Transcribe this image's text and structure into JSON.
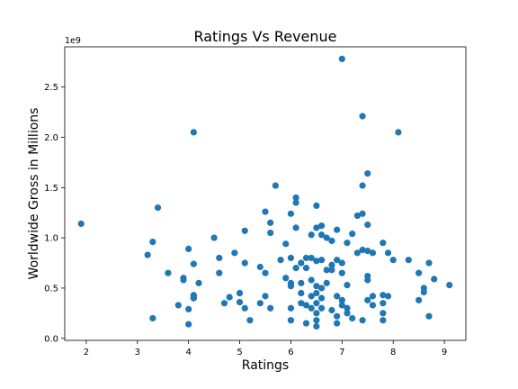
{
  "chart_data": {
    "type": "scatter",
    "title": "Ratings Vs Revenue",
    "xlabel": "Ratings",
    "ylabel": "Worldwide Gross in Millions",
    "y_offset_label": "1e9",
    "xlim": [
      1.58,
      9.42
    ],
    "ylim": [
      -0.02,
      2.9
    ],
    "xticks": [
      2,
      3,
      4,
      5,
      6,
      7,
      8,
      9
    ],
    "yticks": [
      0.0,
      0.5,
      1.0,
      1.5,
      2.0,
      2.5
    ],
    "ytick_labels": [
      "0.0",
      "0.5",
      "1.0",
      "1.5",
      "2.0",
      "2.5"
    ],
    "grid": false,
    "marker_color": "#1f77b4",
    "series": [
      {
        "x": [
          1.9,
          3.2,
          3.3,
          3.3,
          3.4,
          3.6,
          3.8,
          3.9,
          3.9,
          4.0,
          4.0,
          4.0,
          4.1,
          4.1,
          4.1,
          4.1,
          4.1,
          4.2,
          4.5,
          4.6,
          4.6,
          4.7,
          4.8,
          4.9,
          5.0,
          5.0,
          5.1,
          5.1,
          5.1,
          5.2,
          5.4,
          5.4,
          5.5,
          5.5,
          5.5,
          5.6,
          5.6,
          5.6,
          5.7,
          5.8,
          5.9,
          5.9,
          6.0,
          6.0,
          6.0,
          6.0,
          6.0,
          6.0,
          6.1,
          6.1,
          6.1,
          6.1,
          6.2,
          6.2,
          6.2,
          6.2,
          6.3,
          6.3,
          6.3,
          6.3,
          6.4,
          6.4,
          6.4,
          6.4,
          6.4,
          6.5,
          6.5,
          6.5,
          6.5,
          6.5,
          6.5,
          6.5,
          6.5,
          6.5,
          6.6,
          6.6,
          6.6,
          6.6,
          6.6,
          6.6,
          6.7,
          6.7,
          6.7,
          6.8,
          6.8,
          6.8,
          6.8,
          6.9,
          6.9,
          6.9,
          6.9,
          6.9,
          7.0,
          7.0,
          7.0,
          7.0,
          7.0,
          7.1,
          7.1,
          7.1,
          7.1,
          7.2,
          7.2,
          7.3,
          7.3,
          7.4,
          7.4,
          7.4,
          7.4,
          7.4,
          7.5,
          7.5,
          7.5,
          7.5,
          7.5,
          7.5,
          7.6,
          7.6,
          7.6,
          7.8,
          7.8,
          7.8,
          7.8,
          7.8,
          7.9,
          7.9,
          8.0,
          8.1,
          8.3,
          8.5,
          8.5,
          8.6,
          8.6,
          8.7,
          8.7,
          8.8,
          9.1
        ],
        "y": [
          1.14,
          0.83,
          0.96,
          0.2,
          1.3,
          0.65,
          0.33,
          0.6,
          0.58,
          0.89,
          0.14,
          0.29,
          2.05,
          0.74,
          0.43,
          0.41,
          0.4,
          0.55,
          1.0,
          0.8,
          0.65,
          0.35,
          0.41,
          0.85,
          0.45,
          0.36,
          1.07,
          0.75,
          0.3,
          0.18,
          0.71,
          0.35,
          1.26,
          0.65,
          0.42,
          1.15,
          1.05,
          0.3,
          1.52,
          0.78,
          0.94,
          0.6,
          1.24,
          0.8,
          0.55,
          0.52,
          0.3,
          0.18,
          1.4,
          1.35,
          1.1,
          0.7,
          0.75,
          0.45,
          0.35,
          0.55,
          0.8,
          0.7,
          0.33,
          0.15,
          0.8,
          0.58,
          1.03,
          0.42,
          0.3,
          1.32,
          1.1,
          0.77,
          0.52,
          0.45,
          0.35,
          0.25,
          0.18,
          0.12,
          1.12,
          1.03,
          0.78,
          0.5,
          0.4,
          0.3,
          1.0,
          0.68,
          0.55,
          0.97,
          0.73,
          0.68,
          0.28,
          1.08,
          0.78,
          0.42,
          0.22,
          0.15,
          2.78,
          0.75,
          0.65,
          0.38,
          0.33,
          0.95,
          0.53,
          0.3,
          0.25,
          1.04,
          0.2,
          1.22,
          0.85,
          2.21,
          1.52,
          1.24,
          0.88,
          0.18,
          1.64,
          1.13,
          0.87,
          0.62,
          0.58,
          0.38,
          0.85,
          0.42,
          0.33,
          0.95,
          0.43,
          0.35,
          0.25,
          0.18,
          0.85,
          0.42,
          0.78,
          2.05,
          0.78,
          0.65,
          0.38,
          0.5,
          0.46,
          0.75,
          0.22,
          0.59,
          0.53
        ]
      }
    ]
  }
}
